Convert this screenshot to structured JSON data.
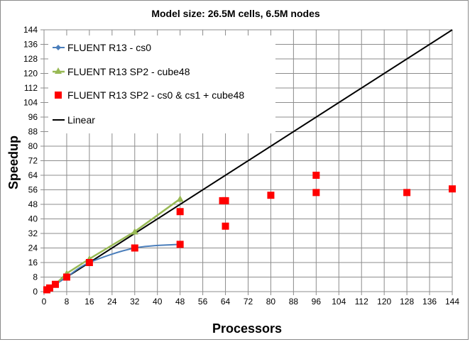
{
  "chart_data": {
    "type": "line",
    "title": "Model size: 26.5M cells, 6.5M nodes",
    "xlabel": "Processors",
    "ylabel": "Speedup",
    "xlim": [
      0,
      144
    ],
    "ylim": [
      0,
      144
    ],
    "xticks": [
      0,
      8,
      16,
      24,
      32,
      40,
      48,
      56,
      64,
      72,
      80,
      88,
      96,
      104,
      112,
      120,
      128,
      136,
      144
    ],
    "yticks": [
      0,
      8,
      16,
      24,
      32,
      40,
      48,
      56,
      64,
      72,
      80,
      88,
      96,
      104,
      112,
      120,
      128,
      136,
      144
    ],
    "grid": true,
    "legend_position": "top-left",
    "series": [
      {
        "name": "FLUENT R13 - cs0",
        "style": "smooth-line-diamond",
        "color": "#4a7ebb",
        "x": [
          1,
          2,
          4,
          8,
          16,
          32,
          48
        ],
        "y": [
          1,
          2,
          4,
          8,
          16,
          24,
          26
        ]
      },
      {
        "name": "FLUENT R13 SP2 - cube48",
        "style": "line-triangle",
        "color": "#98b954",
        "x": [
          1,
          2,
          4,
          8,
          16,
          32,
          48
        ],
        "y": [
          1,
          2,
          4,
          10,
          18,
          33,
          51
        ]
      },
      {
        "name": "FLUENT R13 SP2 - cs0 & cs1 + cube48",
        "style": "square-markers",
        "color": "#ff0000",
        "x": [
          1,
          2,
          4,
          8,
          16,
          32,
          48,
          48,
          63,
          64,
          64,
          80,
          96,
          96,
          128,
          144
        ],
        "y": [
          1,
          2,
          4,
          8,
          16,
          24,
          44,
          26,
          50,
          50,
          36,
          53,
          64,
          54.5,
          54.5,
          56.5
        ]
      },
      {
        "name": "Linear",
        "style": "line",
        "color": "#000000",
        "x": [
          0,
          144
        ],
        "y": [
          0,
          144
        ]
      }
    ]
  }
}
